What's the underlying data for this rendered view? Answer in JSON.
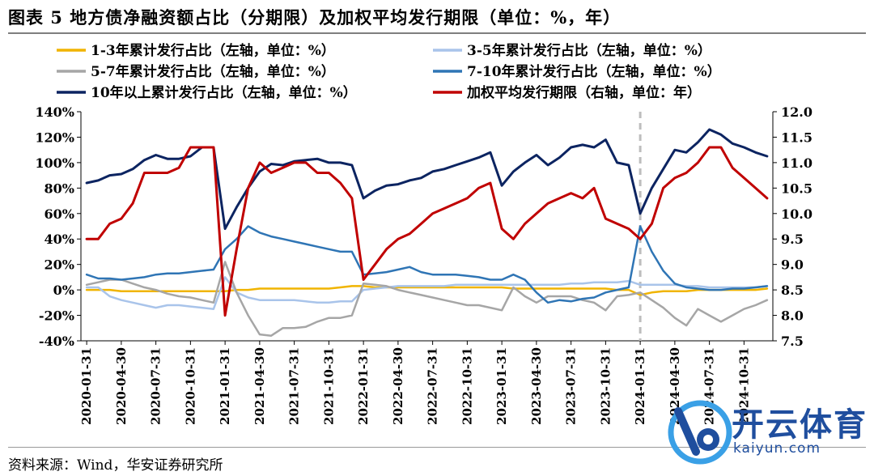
{
  "figure": {
    "title": "图表 5 地方债净融资额占比（分期限）及加权平均发行期限（单位：%，年）",
    "source": "资料来源：Wind，华安证券研究所"
  },
  "watermark": {
    "name": "开云体育",
    "url": "kaiyun.com"
  },
  "chart_data": {
    "type": "line",
    "x": [
      "2020-01-31",
      "2020-02-29",
      "2020-03-31",
      "2020-04-30",
      "2020-05-31",
      "2020-06-30",
      "2020-07-31",
      "2020-08-31",
      "2020-09-30",
      "2020-10-31",
      "2020-11-30",
      "2020-12-31",
      "2021-01-31",
      "2021-02-28",
      "2021-03-31",
      "2021-04-30",
      "2021-05-31",
      "2021-06-30",
      "2021-07-31",
      "2021-08-31",
      "2021-09-30",
      "2021-10-31",
      "2021-11-30",
      "2021-12-31",
      "2022-01-31",
      "2022-02-28",
      "2022-03-31",
      "2022-04-30",
      "2022-05-31",
      "2022-06-30",
      "2022-07-31",
      "2022-08-31",
      "2022-09-30",
      "2022-10-31",
      "2022-11-30",
      "2022-12-31",
      "2023-01-31",
      "2023-02-28",
      "2023-03-31",
      "2023-04-30",
      "2023-05-31",
      "2023-06-30",
      "2023-07-31",
      "2023-08-31",
      "2023-09-30",
      "2023-10-31",
      "2023-11-30",
      "2023-12-31",
      "2024-01-31",
      "2024-02-29",
      "2024-03-31",
      "2024-04-30",
      "2024-05-31",
      "2024-06-30",
      "2024-07-31",
      "2024-08-31",
      "2024-09-30",
      "2024-10-31",
      "2024-11-30",
      "2024-12-31"
    ],
    "x_tick_labels": [
      "2020-01-31",
      "2020-04-30",
      "2020-07-31",
      "2020-10-31",
      "2021-01-31",
      "2021-04-30",
      "2021-07-31",
      "2021-10-31",
      "2022-01-31",
      "2022-04-30",
      "2022-07-31",
      "2022-10-31",
      "2023-01-31",
      "2023-04-30",
      "2023-07-31",
      "2023-10-31",
      "2024-01-31",
      "2024-04-30",
      "2024-07-31",
      "2024-10-31"
    ],
    "y_left": {
      "ylim": [
        -40,
        140
      ],
      "ticks": [
        "-40%",
        "-20%",
        "0%",
        "20%",
        "40%",
        "60%",
        "80%",
        "100%",
        "120%",
        "140%"
      ]
    },
    "y_right": {
      "ylim": [
        7.5,
        12.0
      ],
      "ticks": [
        "7.5",
        "8.0",
        "8.5",
        "9.0",
        "9.5",
        "10.0",
        "10.5",
        "11.0",
        "11.5",
        "12.0"
      ]
    },
    "vline_at": "2024-01-31",
    "legend_placement": "top",
    "series": [
      {
        "name": "1-3年累计发行占比（左轴，单位：%）",
        "axis": "left",
        "color": "#f0b400",
        "width": 2.5,
        "values": [
          0,
          0,
          0,
          -1,
          -1,
          -1,
          -1,
          -1,
          -1,
          -1,
          -1,
          -1,
          -1,
          0,
          0,
          1,
          1,
          1,
          1,
          1,
          1,
          1,
          2,
          3,
          3,
          2,
          2,
          2,
          2,
          2,
          2,
          2,
          2,
          2,
          2,
          2,
          2,
          1,
          1,
          1,
          1,
          1,
          1,
          1,
          1,
          1,
          0,
          0,
          -4,
          -2,
          -1,
          -1,
          -1,
          0,
          0,
          0,
          0,
          0,
          0,
          1
        ]
      },
      {
        "name": "3-5年累计发行占比（左轴，单位：%）",
        "axis": "left",
        "color": "#a9c4ea",
        "width": 2.5,
        "values": [
          2,
          2,
          -5,
          -8,
          -10,
          -12,
          -14,
          -12,
          -12,
          -13,
          -14,
          -15,
          10,
          -2,
          -6,
          -8,
          -8,
          -8,
          -8,
          -9,
          -10,
          -10,
          -9,
          -9,
          0,
          1,
          2,
          3,
          3,
          3,
          3,
          3,
          4,
          4,
          4,
          4,
          4,
          4,
          4,
          4,
          4,
          4,
          5,
          5,
          6,
          6,
          6,
          7,
          4,
          4,
          4,
          4,
          3,
          3,
          2,
          2,
          2,
          2,
          2,
          3
        ]
      },
      {
        "name": "5-7年累计发行占比（左轴，单位：%）",
        "axis": "left",
        "color": "#a6a6a6",
        "width": 2.5,
        "values": [
          4,
          6,
          8,
          8,
          5,
          2,
          0,
          -3,
          -5,
          -6,
          -8,
          -10,
          22,
          -2,
          -20,
          -35,
          -36,
          -30,
          -30,
          -29,
          -25,
          -22,
          -22,
          -20,
          5,
          4,
          3,
          0,
          -2,
          -4,
          -6,
          -8,
          -10,
          -12,
          -12,
          -14,
          -16,
          2,
          -5,
          -10,
          -5,
          -5,
          -5,
          -8,
          -10,
          -16,
          -5,
          -4,
          -2,
          -8,
          -14,
          -22,
          -28,
          -15,
          -20,
          -25,
          -20,
          -15,
          -12,
          -8
        ]
      },
      {
        "name": "7-10年累计发行占比（左轴，单位：%）",
        "axis": "left",
        "color": "#2f75b5",
        "width": 2.5,
        "values": [
          12,
          9,
          9,
          8,
          9,
          10,
          12,
          13,
          13,
          14,
          15,
          16,
          32,
          40,
          50,
          45,
          42,
          40,
          38,
          36,
          34,
          32,
          30,
          30,
          12,
          13,
          14,
          16,
          18,
          14,
          12,
          12,
          12,
          11,
          10,
          8,
          8,
          12,
          8,
          -2,
          -10,
          -8,
          -9,
          -7,
          -6,
          -2,
          0,
          2,
          50,
          30,
          15,
          5,
          2,
          1,
          0,
          0,
          1,
          1,
          2,
          3
        ]
      },
      {
        "name": "10年以上累计发行占比（左轴，单位：%）",
        "axis": "left",
        "color": "#0c2461",
        "width": 3,
        "values": [
          84,
          86,
          90,
          91,
          95,
          102,
          106,
          103,
          103,
          105,
          112,
          112,
          48,
          65,
          80,
          93,
          99,
          98,
          101,
          102,
          103,
          100,
          100,
          98,
          72,
          78,
          82,
          83,
          86,
          88,
          93,
          95,
          98,
          101,
          104,
          108,
          82,
          93,
          100,
          106,
          98,
          104,
          112,
          114,
          112,
          118,
          100,
          98,
          60,
          80,
          95,
          110,
          108,
          116,
          126,
          122,
          115,
          112,
          108,
          105
        ]
      },
      {
        "name": "加权平均发行期限（右轴，单位：年）",
        "axis": "right",
        "color": "#c00000",
        "width": 3,
        "values": [
          9.5,
          9.5,
          9.8,
          9.9,
          10.2,
          10.8,
          10.8,
          10.8,
          10.9,
          11.3,
          11.3,
          11.3,
          8.0,
          9.3,
          10.5,
          11.0,
          10.8,
          10.9,
          11.0,
          11.0,
          10.8,
          10.8,
          10.6,
          10.3,
          8.7,
          9.0,
          9.3,
          9.5,
          9.6,
          9.8,
          10.0,
          10.1,
          10.2,
          10.3,
          10.5,
          10.6,
          9.7,
          9.5,
          9.8,
          10.0,
          10.2,
          10.3,
          10.4,
          10.3,
          10.5,
          9.9,
          9.8,
          9.7,
          9.5,
          9.8,
          10.5,
          10.7,
          10.8,
          11.0,
          11.3,
          11.3,
          10.9,
          10.7,
          10.5,
          10.3
        ]
      }
    ]
  }
}
